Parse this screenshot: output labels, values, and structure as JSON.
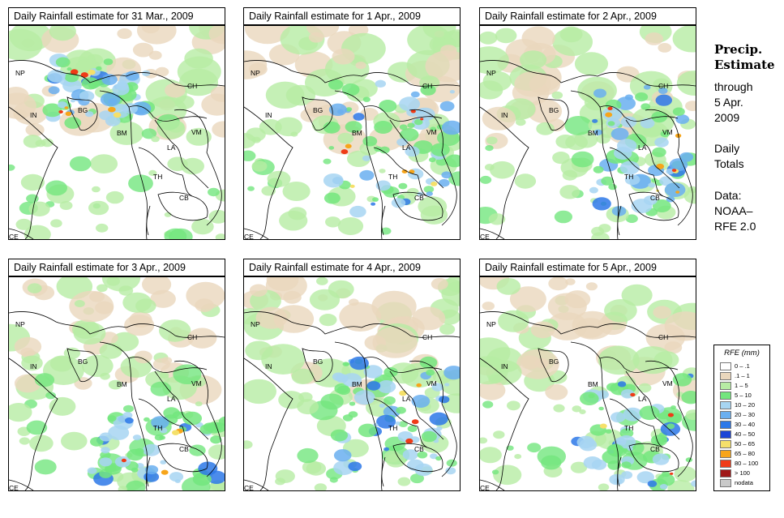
{
  "panels": [
    {
      "title": "Daily Rainfall estimate for  31 Mar., 2009",
      "intensity": "heavy-west"
    },
    {
      "title": "Daily Rainfall estimate for  1 Apr., 2009",
      "intensity": "moderate-south"
    },
    {
      "title": "Daily Rainfall estimate for  2 Apr., 2009",
      "intensity": "moderate-east"
    },
    {
      "title": "Daily Rainfall estimate for  3 Apr., 2009",
      "intensity": "light-south"
    },
    {
      "title": "Daily Rainfall estimate for  4 Apr., 2009",
      "intensity": "light-east"
    },
    {
      "title": "Daily Rainfall estimate for  5 Apr., 2009",
      "intensity": "light-coast"
    }
  ],
  "country_labels": [
    "NP",
    "CH",
    "IN",
    "BG",
    "BM",
    "VM",
    "LA",
    "TH",
    "CB",
    "CE"
  ],
  "sidebar": {
    "title_line1": "Precip.",
    "title_line2": "Estimate",
    "through": "through",
    "date_line1": "5 Apr.",
    "date_line2": "2009",
    "daily1": "Daily",
    "daily2": "Totals",
    "data1": "Data:",
    "data2": "NOAA–",
    "data3": "RFE 2.0"
  },
  "legend": {
    "title": "RFE (mm)",
    "items": [
      {
        "label": "0 – .1",
        "color": "#ffffff"
      },
      {
        "label": ".1 – 1",
        "color": "#ead7bd"
      },
      {
        "label": "1 – 5",
        "color": "#b7eca4"
      },
      {
        "label": "5 – 10",
        "color": "#73e67e"
      },
      {
        "label": "10 – 20",
        "color": "#a7d5f2"
      },
      {
        "label": "20 – 30",
        "color": "#6aaff0"
      },
      {
        "label": "30 – 40",
        "color": "#2d78e8"
      },
      {
        "label": "40 – 50",
        "color": "#1c45d6"
      },
      {
        "label": "50 – 65",
        "color": "#f5e06a"
      },
      {
        "label": "65 – 80",
        "color": "#f7a51a"
      },
      {
        "label": "80 – 100",
        "color": "#ef3b17"
      },
      {
        "label": "> 100",
        "color": "#a01818"
      },
      {
        "label": "nodata",
        "color": "#c9c9c9"
      }
    ]
  }
}
